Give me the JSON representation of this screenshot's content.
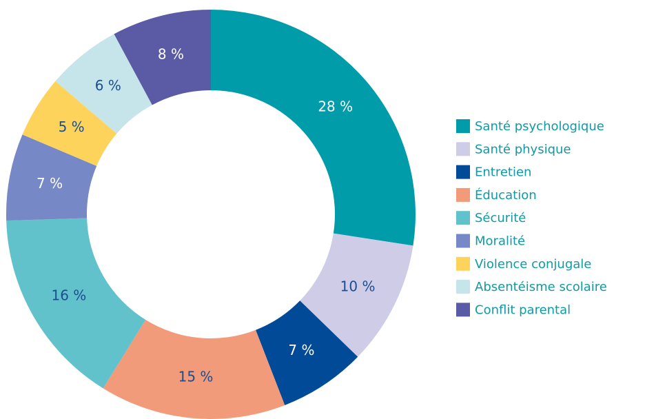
{
  "chart_data": {
    "type": "donut",
    "categories": [
      "Santé psychologique",
      "Santé physique",
      "Entretien",
      "Éducation",
      "Sécurité",
      "Moralité",
      "Violence conjugale",
      "Absentéisme scolaire",
      "Conflit parental"
    ],
    "values": [
      28,
      10,
      7,
      15,
      16,
      7,
      5,
      6,
      8
    ],
    "value_labels": [
      "28 %",
      "10 %",
      "7 %",
      "15 %",
      "16 %",
      "7 %",
      "5 %",
      "6 %",
      "8 %"
    ],
    "colors": [
      "#009ca9",
      "#cfcce8",
      "#004a98",
      "#f29b7a",
      "#62c2cc",
      "#7688c6",
      "#fdd35c",
      "#c5e5ea",
      "#5b5aa5"
    ],
    "legend": "right"
  }
}
